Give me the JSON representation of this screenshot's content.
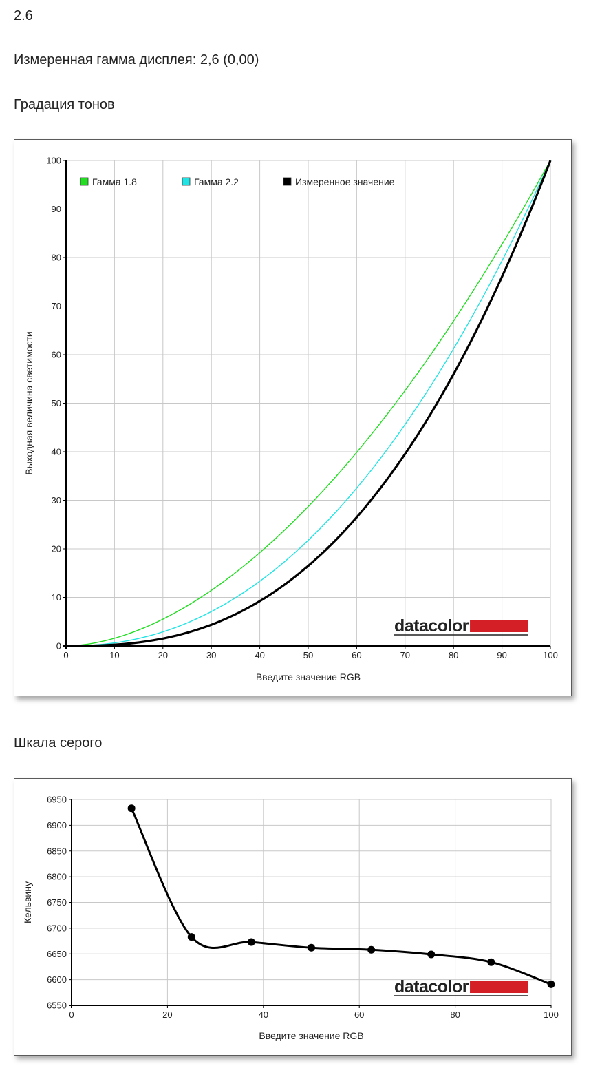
{
  "header": {
    "value": "2.6",
    "measured_gamma": "Измеренная гамма дисплея: 2,6 (0,00)",
    "section_tone": "Градация тонов",
    "section_gray": "Шкала серого"
  },
  "logo": {
    "text": "datacolor",
    "accent_color": "#d41f26"
  },
  "chart_data": [
    {
      "type": "line",
      "xlabel": "Введите значение RGB",
      "ylabel": "Выходная величина светимости",
      "xlim": [
        0,
        100
      ],
      "ylim": [
        0,
        100
      ],
      "xticks": [
        0,
        10,
        20,
        30,
        40,
        50,
        60,
        70,
        80,
        90,
        100
      ],
      "yticks": [
        0,
        10,
        20,
        30,
        40,
        50,
        60,
        70,
        80,
        90,
        100
      ],
      "grid": true,
      "legend_position": "top-left",
      "series": [
        {
          "name": "Гамма 1.8",
          "color": "#22dd22",
          "gamma": 1.8,
          "x": [
            0,
            10,
            20,
            30,
            40,
            50,
            60,
            70,
            80,
            90,
            100
          ],
          "y": [
            0,
            1.6,
            5.5,
            11.5,
            19.2,
            28.7,
            39.9,
            52.6,
            66.9,
            82.7,
            100
          ]
        },
        {
          "name": "Гамма 2.2",
          "color": "#22e3e3",
          "gamma": 2.2,
          "x": [
            0,
            10,
            20,
            30,
            40,
            50,
            60,
            70,
            80,
            90,
            100
          ],
          "y": [
            0,
            0.6,
            2.9,
            7.1,
            13.3,
            21.8,
            32.5,
            45.6,
            61.2,
            79.3,
            100
          ]
        },
        {
          "name": "Измеренное значение",
          "color": "#000000",
          "gamma": 2.6,
          "x": [
            0,
            10,
            20,
            30,
            40,
            50,
            60,
            70,
            80,
            90,
            100
          ],
          "y": [
            0,
            0.3,
            1.5,
            4.4,
            9.2,
            16.5,
            26.5,
            39.5,
            56.0,
            76.0,
            100
          ]
        }
      ]
    },
    {
      "type": "line",
      "xlabel": "Введите значение RGB",
      "ylabel": "Кельвину",
      "xlim": [
        0,
        100
      ],
      "ylim": [
        6550,
        6950
      ],
      "xticks": [
        0,
        20,
        40,
        60,
        80,
        100
      ],
      "yticks": [
        6550,
        6600,
        6650,
        6700,
        6750,
        6800,
        6850,
        6900,
        6950
      ],
      "grid": true,
      "series": [
        {
          "color": "#000000",
          "x": [
            12.5,
            25,
            37.5,
            50,
            62.5,
            75,
            87.5,
            100
          ],
          "y": [
            6933,
            6683,
            6673,
            6662,
            6658,
            6649,
            6634,
            6591
          ]
        }
      ]
    }
  ]
}
